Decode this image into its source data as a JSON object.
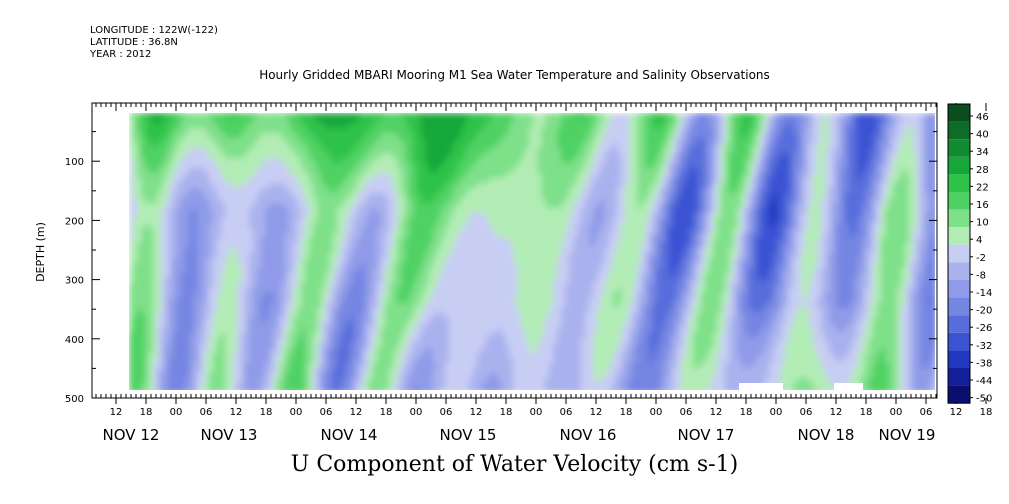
{
  "header": {
    "longitude": "LONGITUDE : 122W(-122)",
    "latitude": "LATITUDE : 36.8N",
    "year": "YEAR : 2012"
  },
  "chart_data": {
    "type": "heatmap",
    "title": "Hourly Gridded MBARI Mooring M1 Sea Water Temperature and Salinity Observations",
    "xlabel": "U Component of Water Velocity (cm s-1)",
    "ylabel": "DEPTH (m)",
    "ylim": [
      500,
      0
    ],
    "yticks": [
      100,
      200,
      300,
      400,
      500
    ],
    "xlim_hours": [
      "NOV 11 06",
      "NOV 19 09"
    ],
    "hour_ticks": [
      "12",
      "18",
      "00",
      "06",
      "12",
      "18",
      "00",
      "06",
      "12",
      "18",
      "00",
      "06",
      "12",
      "18",
      "00",
      "06",
      "12",
      "18",
      "00",
      "06",
      "12",
      "18",
      "00",
      "06",
      "12",
      "18",
      "00",
      "06",
      "12",
      "18",
      "00",
      "06"
    ],
    "date_labels": [
      "NOV 12",
      "NOV 13",
      "NOV 14",
      "NOV 15",
      "NOV 16",
      "NOV 17",
      "NOV 18",
      "NOV 19"
    ],
    "data_extent": {
      "time_start": "NOV 11 15",
      "time_end": "NOV 19 08",
      "depth_top": 20,
      "depth_bottom": 485
    },
    "colorbar": {
      "levels": [
        "46",
        "40",
        "34",
        "28",
        "22",
        "16",
        "10",
        "4",
        "-2",
        "-8",
        "-14",
        "-20",
        "-26",
        "-32",
        "-38",
        "-44",
        "-50"
      ],
      "colors_high_to_low": [
        "#0b4e1e",
        "#0e6b28",
        "#118a31",
        "#16a73a",
        "#2ec24a",
        "#4fd263",
        "#7fe08a",
        "#b2ecb5",
        "#c8cdf4",
        "#aab2ee",
        "#8f9be8",
        "#7485e2",
        "#566ddb",
        "#3a53d3",
        "#2338c0",
        "#14209a",
        "#0a0e6e"
      ]
    },
    "field_description_columns": [
      {
        "time": "NOV 12 00",
        "surface": 16,
        "mid": -8,
        "deep": -2
      },
      {
        "time": "NOV 13 00",
        "surface": 22,
        "mid": -8,
        "deep": 4
      },
      {
        "time": "NOV 14 00",
        "surface": 28,
        "mid": 4,
        "deep": -8
      },
      {
        "time": "NOV 15 00",
        "surface": 10,
        "mid": 4,
        "deep": -8
      },
      {
        "time": "NOV 16 00",
        "surface": 4,
        "mid": -8,
        "deep": -14
      },
      {
        "time": "NOV 17 00",
        "surface": -2,
        "mid": -14,
        "deep": 4
      },
      {
        "time": "NOV 18 00",
        "surface": -20,
        "mid": -8,
        "deep": 10
      },
      {
        "time": "NOV 19 00",
        "surface": 4,
        "mid": 10,
        "deep": 4
      }
    ]
  }
}
